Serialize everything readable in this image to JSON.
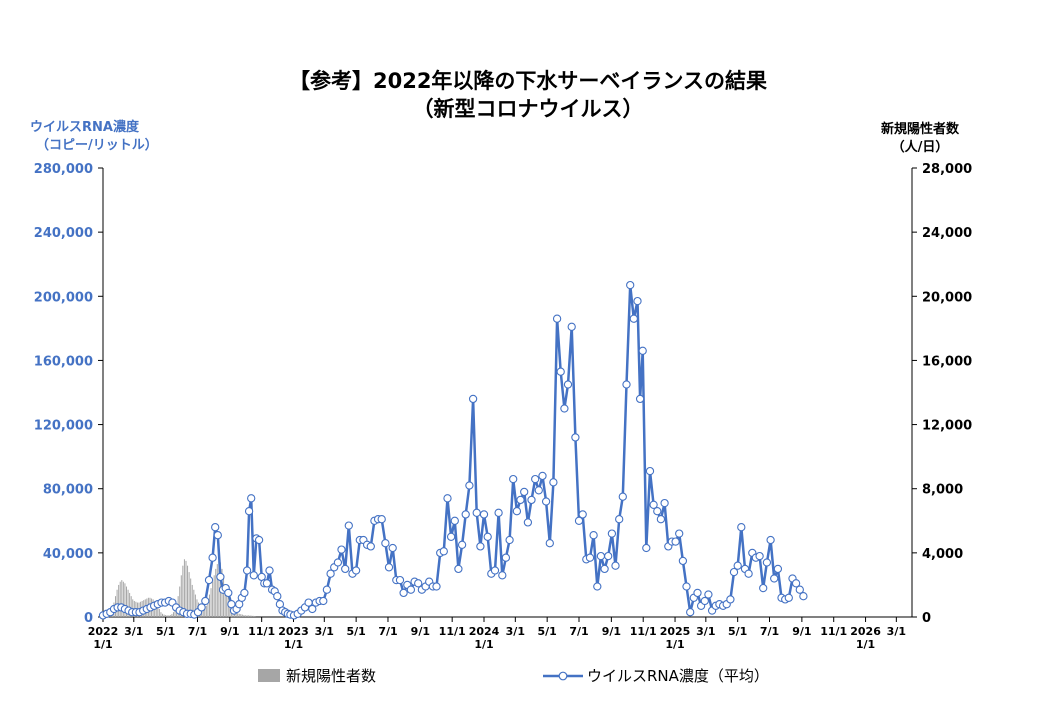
{
  "chart_data": {
    "type": "bar+line",
    "title_line1": "【参考】2022年以降の下水サーベイランスの結果",
    "title_line2": "（新型コロナウイルス）",
    "left_axis": {
      "label_line1": "ウイルスRNA濃度",
      "label_line2": "（コピー/リットル）",
      "range": [
        0,
        280000
      ],
      "ticks": [
        "0",
        "40,000",
        "80,000",
        "120,000",
        "160,000",
        "200,000",
        "240,000",
        "280,000"
      ]
    },
    "right_axis": {
      "label_line1": "新規陽性者数",
      "label_line2": "（人/日）",
      "range": [
        0,
        28000
      ],
      "ticks": [
        "0",
        "4,000",
        "8,000",
        "12,000",
        "16,000",
        "20,000",
        "24,000",
        "28,000"
      ]
    },
    "x_range": [
      "2022-01-01",
      "2026-03-31"
    ],
    "x_ticks": [
      {
        "date": "2022-01-01",
        "l1": "2022",
        "l2": "1/1"
      },
      {
        "date": "2022-03-01",
        "l1": "3/1",
        "l2": ""
      },
      {
        "date": "2022-05-01",
        "l1": "5/1",
        "l2": ""
      },
      {
        "date": "2022-07-01",
        "l1": "7/1",
        "l2": ""
      },
      {
        "date": "2022-09-01",
        "l1": "9/1",
        "l2": ""
      },
      {
        "date": "2022-11-01",
        "l1": "11/1",
        "l2": ""
      },
      {
        "date": "2023-01-01",
        "l1": "2023",
        "l2": "1/1"
      },
      {
        "date": "2023-03-01",
        "l1": "3/1",
        "l2": ""
      },
      {
        "date": "2023-05-01",
        "l1": "5/1",
        "l2": ""
      },
      {
        "date": "2023-07-01",
        "l1": "7/1",
        "l2": ""
      },
      {
        "date": "2023-09-01",
        "l1": "9/1",
        "l2": ""
      },
      {
        "date": "2023-11-01",
        "l1": "11/1",
        "l2": ""
      },
      {
        "date": "2024-01-01",
        "l1": "2024",
        "l2": "1/1"
      },
      {
        "date": "2024-03-01",
        "l1": "3/1",
        "l2": ""
      },
      {
        "date": "2024-05-01",
        "l1": "5/1",
        "l2": ""
      },
      {
        "date": "2024-07-01",
        "l1": "7/1",
        "l2": ""
      },
      {
        "date": "2024-09-01",
        "l1": "9/1",
        "l2": ""
      },
      {
        "date": "2024-11-01",
        "l1": "11/1",
        "l2": ""
      },
      {
        "date": "2025-01-01",
        "l1": "2025",
        "l2": "1/1"
      },
      {
        "date": "2025-03-01",
        "l1": "3/1",
        "l2": ""
      },
      {
        "date": "2025-05-01",
        "l1": "5/1",
        "l2": ""
      },
      {
        "date": "2025-07-01",
        "l1": "7/1",
        "l2": ""
      },
      {
        "date": "2025-09-01",
        "l1": "9/1",
        "l2": ""
      },
      {
        "date": "2025-11-01",
        "l1": "11/1",
        "l2": ""
      },
      {
        "date": "2026-01-01",
        "l1": "2026",
        "l2": "1/1"
      },
      {
        "date": "2026-03-01",
        "l1": "3/1",
        "l2": ""
      }
    ],
    "series": [
      {
        "name": "新規陽性者数",
        "type": "bar",
        "axis": "right",
        "color": "#a6a6a6",
        "start": "2022-01-01",
        "interval_days": 3,
        "values": [
          10,
          30,
          70,
          120,
          200,
          350,
          600,
          900,
          1300,
          1700,
          2000,
          2200,
          2300,
          2200,
          2100,
          1900,
          1700,
          1500,
          1300,
          1100,
          1000,
          950,
          900,
          900,
          950,
          1000,
          1050,
          1100,
          1150,
          1200,
          1200,
          1150,
          1100,
          1000,
          900,
          700,
          500,
          300,
          200,
          150,
          120,
          100,
          100,
          120,
          180,
          300,
          500,
          800,
          1300,
          1900,
          2600,
          3200,
          3600,
          3500,
          3200,
          2800,
          2400,
          2000,
          1700,
          1400,
          1100,
          900,
          700,
          500,
          450,
          500,
          700,
          1000,
          1400,
          1800,
          2200,
          2600,
          3000,
          3300,
          3500,
          3400,
          3000,
          2500,
          2000,
          1600,
          1300,
          1100,
          900,
          700,
          500,
          350,
          250,
          200,
          180,
          150,
          120,
          100,
          100,
          100,
          90,
          80,
          70,
          60
        ]
      },
      {
        "name": "ウイルスRNA濃度（平均）",
        "type": "line",
        "axis": "left",
        "color": "#4472c4",
        "points": [
          [
            "2022-01-01",
            1000
          ],
          [
            "2022-01-08",
            2000
          ],
          [
            "2022-01-15",
            3000
          ],
          [
            "2022-01-22",
            5000
          ],
          [
            "2022-01-29",
            6000
          ],
          [
            "2022-02-05",
            6000
          ],
          [
            "2022-02-12",
            5000
          ],
          [
            "2022-02-19",
            4000
          ],
          [
            "2022-02-26",
            3000
          ],
          [
            "2022-03-05",
            3000
          ],
          [
            "2022-03-12",
            3000
          ],
          [
            "2022-03-19",
            4000
          ],
          [
            "2022-03-26",
            5000
          ],
          [
            "2022-04-02",
            6000
          ],
          [
            "2022-04-09",
            7000
          ],
          [
            "2022-04-16",
            8000
          ],
          [
            "2022-04-23",
            9000
          ],
          [
            "2022-04-30",
            9000
          ],
          [
            "2022-05-07",
            10000
          ],
          [
            "2022-05-14",
            9000
          ],
          [
            "2022-05-21",
            6000
          ],
          [
            "2022-05-28",
            4000
          ],
          [
            "2022-06-04",
            3000
          ],
          [
            "2022-06-11",
            2000
          ],
          [
            "2022-06-18",
            2000
          ],
          [
            "2022-06-25",
            1500
          ],
          [
            "2022-07-02",
            3000
          ],
          [
            "2022-07-09",
            6000
          ],
          [
            "2022-07-16",
            10000
          ],
          [
            "2022-07-23",
            23000
          ],
          [
            "2022-07-30",
            37000
          ],
          [
            "2022-08-04",
            56000
          ],
          [
            "2022-08-09",
            51000
          ],
          [
            "2022-08-14",
            25000
          ],
          [
            "2022-08-19",
            17000
          ],
          [
            "2022-08-24",
            18000
          ],
          [
            "2022-08-29",
            15000
          ],
          [
            "2022-09-04",
            8000
          ],
          [
            "2022-09-09",
            4000
          ],
          [
            "2022-09-14",
            5000
          ],
          [
            "2022-09-19",
            8000
          ],
          [
            "2022-09-24",
            12000
          ],
          [
            "2022-09-29",
            15000
          ],
          [
            "2022-10-04",
            29000
          ],
          [
            "2022-10-08",
            66000
          ],
          [
            "2022-10-12",
            74000
          ],
          [
            "2022-10-17",
            26000
          ],
          [
            "2022-10-22",
            49000
          ],
          [
            "2022-10-27",
            48000
          ],
          [
            "2022-11-01",
            25000
          ],
          [
            "2022-11-06",
            21000
          ],
          [
            "2022-11-11",
            21000
          ],
          [
            "2022-11-16",
            29000
          ],
          [
            "2022-11-21",
            17000
          ],
          [
            "2022-11-26",
            16000
          ],
          [
            "2022-12-01",
            13000
          ],
          [
            "2022-12-06",
            8000
          ],
          [
            "2022-12-11",
            4000
          ],
          [
            "2022-12-16",
            3000
          ],
          [
            "2022-12-21",
            2000
          ],
          [
            "2022-12-26",
            1500
          ],
          [
            "2023-01-02",
            1000
          ],
          [
            "2023-01-09",
            2000
          ],
          [
            "2023-01-16",
            4000
          ],
          [
            "2023-01-23",
            6000
          ],
          [
            "2023-01-30",
            9000
          ],
          [
            "2023-02-06",
            5000
          ],
          [
            "2023-02-13",
            9000
          ],
          [
            "2023-02-20",
            10000
          ],
          [
            "2023-02-27",
            10000
          ],
          [
            "2023-03-06",
            17000
          ],
          [
            "2023-03-13",
            27000
          ],
          [
            "2023-03-20",
            31000
          ],
          [
            "2023-03-27",
            34000
          ],
          [
            "2023-04-03",
            42000
          ],
          [
            "2023-04-10",
            30000
          ],
          [
            "2023-04-17",
            57000
          ],
          [
            "2023-04-24",
            27000
          ],
          [
            "2023-05-01",
            29000
          ],
          [
            "2023-05-08",
            48000
          ],
          [
            "2023-05-15",
            48000
          ],
          [
            "2023-05-22",
            45000
          ],
          [
            "2023-05-29",
            44000
          ],
          [
            "2023-06-05",
            60000
          ],
          [
            "2023-06-12",
            61000
          ],
          [
            "2023-06-19",
            61000
          ],
          [
            "2023-06-26",
            46000
          ],
          [
            "2023-07-03",
            31000
          ],
          [
            "2023-07-10",
            43000
          ],
          [
            "2023-07-17",
            23000
          ],
          [
            "2023-07-24",
            23000
          ],
          [
            "2023-07-31",
            15000
          ],
          [
            "2023-08-07",
            20000
          ],
          [
            "2023-08-14",
            17000
          ],
          [
            "2023-08-21",
            22000
          ],
          [
            "2023-08-28",
            21000
          ],
          [
            "2023-09-04",
            17000
          ],
          [
            "2023-09-11",
            19000
          ],
          [
            "2023-09-18",
            22000
          ],
          [
            "2023-09-25",
            19000
          ],
          [
            "2023-10-02",
            19000
          ],
          [
            "2023-10-09",
            40000
          ],
          [
            "2023-10-16",
            41000
          ],
          [
            "2023-10-23",
            74000
          ],
          [
            "2023-10-30",
            50000
          ],
          [
            "2023-11-06",
            60000
          ],
          [
            "2023-11-13",
            30000
          ],
          [
            "2023-11-20",
            45000
          ],
          [
            "2023-11-27",
            64000
          ],
          [
            "2023-12-04",
            82000
          ],
          [
            "2023-12-11",
            136000
          ],
          [
            "2023-12-18",
            65000
          ],
          [
            "2023-12-25",
            44000
          ],
          [
            "2024-01-01",
            64000
          ],
          [
            "2024-01-08",
            50000
          ],
          [
            "2024-01-15",
            27000
          ],
          [
            "2024-01-22",
            29000
          ],
          [
            "2024-01-29",
            65000
          ],
          [
            "2024-02-05",
            26000
          ],
          [
            "2024-02-12",
            37000
          ],
          [
            "2024-02-19",
            48000
          ],
          [
            "2024-02-26",
            86000
          ],
          [
            "2024-03-04",
            66000
          ],
          [
            "2024-03-11",
            73000
          ],
          [
            "2024-03-18",
            78000
          ],
          [
            "2024-03-25",
            59000
          ],
          [
            "2024-04-01",
            73000
          ],
          [
            "2024-04-08",
            86000
          ],
          [
            "2024-04-15",
            79000
          ],
          [
            "2024-04-22",
            88000
          ],
          [
            "2024-04-29",
            72000
          ],
          [
            "2024-05-06",
            46000
          ],
          [
            "2024-05-13",
            84000
          ],
          [
            "2024-05-20",
            186000
          ],
          [
            "2024-05-27",
            153000
          ],
          [
            "2024-06-03",
            130000
          ],
          [
            "2024-06-10",
            145000
          ],
          [
            "2024-06-17",
            181000
          ],
          [
            "2024-06-24",
            112000
          ],
          [
            "2024-07-01",
            60000
          ],
          [
            "2024-07-08",
            64000
          ],
          [
            "2024-07-15",
            36000
          ],
          [
            "2024-07-22",
            37000
          ],
          [
            "2024-07-29",
            51000
          ],
          [
            "2024-08-05",
            19000
          ],
          [
            "2024-08-12",
            38000
          ],
          [
            "2024-08-19",
            30000
          ],
          [
            "2024-08-26",
            38000
          ],
          [
            "2024-09-02",
            52000
          ],
          [
            "2024-09-09",
            32000
          ],
          [
            "2024-09-16",
            61000
          ],
          [
            "2024-09-23",
            75000
          ],
          [
            "2024-09-30",
            145000
          ],
          [
            "2024-10-07",
            207000
          ],
          [
            "2024-10-14",
            186000
          ],
          [
            "2024-10-21",
            197000
          ],
          [
            "2024-10-26",
            136000
          ],
          [
            "2024-10-31",
            166000
          ],
          [
            "2024-11-07",
            43000
          ],
          [
            "2024-11-14",
            91000
          ],
          [
            "2024-11-21",
            70000
          ],
          [
            "2024-11-28",
            66000
          ],
          [
            "2024-12-05",
            61000
          ],
          [
            "2024-12-12",
            71000
          ],
          [
            "2024-12-19",
            44000
          ],
          [
            "2024-12-26",
            47000
          ],
          [
            "2025-01-02",
            47000
          ],
          [
            "2025-01-09",
            52000
          ],
          [
            "2025-01-16",
            35000
          ],
          [
            "2025-01-23",
            19000
          ],
          [
            "2025-01-30",
            3000
          ],
          [
            "2025-02-06",
            12000
          ],
          [
            "2025-02-13",
            15000
          ],
          [
            "2025-02-20",
            7000
          ],
          [
            "2025-02-27",
            10000
          ],
          [
            "2025-03-06",
            14000
          ],
          [
            "2025-03-13",
            4000
          ],
          [
            "2025-03-20",
            7000
          ],
          [
            "2025-03-27",
            8000
          ],
          [
            "2025-04-03",
            7000
          ],
          [
            "2025-04-10",
            8000
          ],
          [
            "2025-04-17",
            11000
          ],
          [
            "2025-04-24",
            28000
          ],
          [
            "2025-05-01",
            32000
          ],
          [
            "2025-05-08",
            56000
          ],
          [
            "2025-05-15",
            30000
          ],
          [
            "2025-05-22",
            27000
          ],
          [
            "2025-05-29",
            40000
          ],
          [
            "2025-06-05",
            37000
          ],
          [
            "2025-06-12",
            38000
          ],
          [
            "2025-06-19",
            18000
          ],
          [
            "2025-06-26",
            34000
          ],
          [
            "2025-07-03",
            48000
          ],
          [
            "2025-07-10",
            24000
          ],
          [
            "2025-07-17",
            30000
          ],
          [
            "2025-07-24",
            12000
          ],
          [
            "2025-07-31",
            11000
          ],
          [
            "2025-08-07",
            12000
          ],
          [
            "2025-08-14",
            24000
          ],
          [
            "2025-08-21",
            21000
          ],
          [
            "2025-08-28",
            17000
          ],
          [
            "2025-09-04",
            13000
          ]
        ]
      }
    ]
  }
}
